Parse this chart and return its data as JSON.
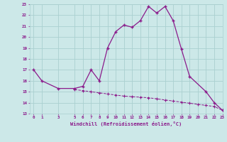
{
  "xlabel": "Windchill (Refroidissement éolien,°C)",
  "x_hours": [
    0,
    1,
    2,
    3,
    4,
    5,
    6,
    7,
    8,
    9,
    10,
    11,
    12,
    13,
    14,
    15,
    16,
    17,
    18,
    19,
    20,
    21,
    22,
    23
  ],
  "y_main": [
    17.0,
    16.0,
    null,
    15.3,
    null,
    15.3,
    15.5,
    17.0,
    16.0,
    19.0,
    20.5,
    21.1,
    20.9,
    21.5,
    22.8,
    22.2,
    22.8,
    21.5,
    18.9,
    16.4,
    null,
    15.0,
    14.0,
    13.3
  ],
  "y_lower": [
    null,
    null,
    null,
    null,
    null,
    15.2,
    15.1,
    15.0,
    14.9,
    14.8,
    14.7,
    14.6,
    14.55,
    14.5,
    14.45,
    14.35,
    14.25,
    14.15,
    14.05,
    13.95,
    13.85,
    13.75,
    13.65,
    13.3
  ],
  "ylim": [
    13,
    23
  ],
  "xlim": [
    -0.5,
    23
  ],
  "yticks": [
    13,
    14,
    15,
    16,
    17,
    18,
    19,
    20,
    21,
    22,
    23
  ],
  "xticks": [
    0,
    1,
    3,
    5,
    6,
    7,
    8,
    9,
    10,
    11,
    12,
    13,
    14,
    15,
    16,
    17,
    18,
    19,
    20,
    21,
    22,
    23
  ],
  "line_color": "#8b1a8b",
  "bg_color": "#cce8e8",
  "grid_color": "#aad0d0"
}
